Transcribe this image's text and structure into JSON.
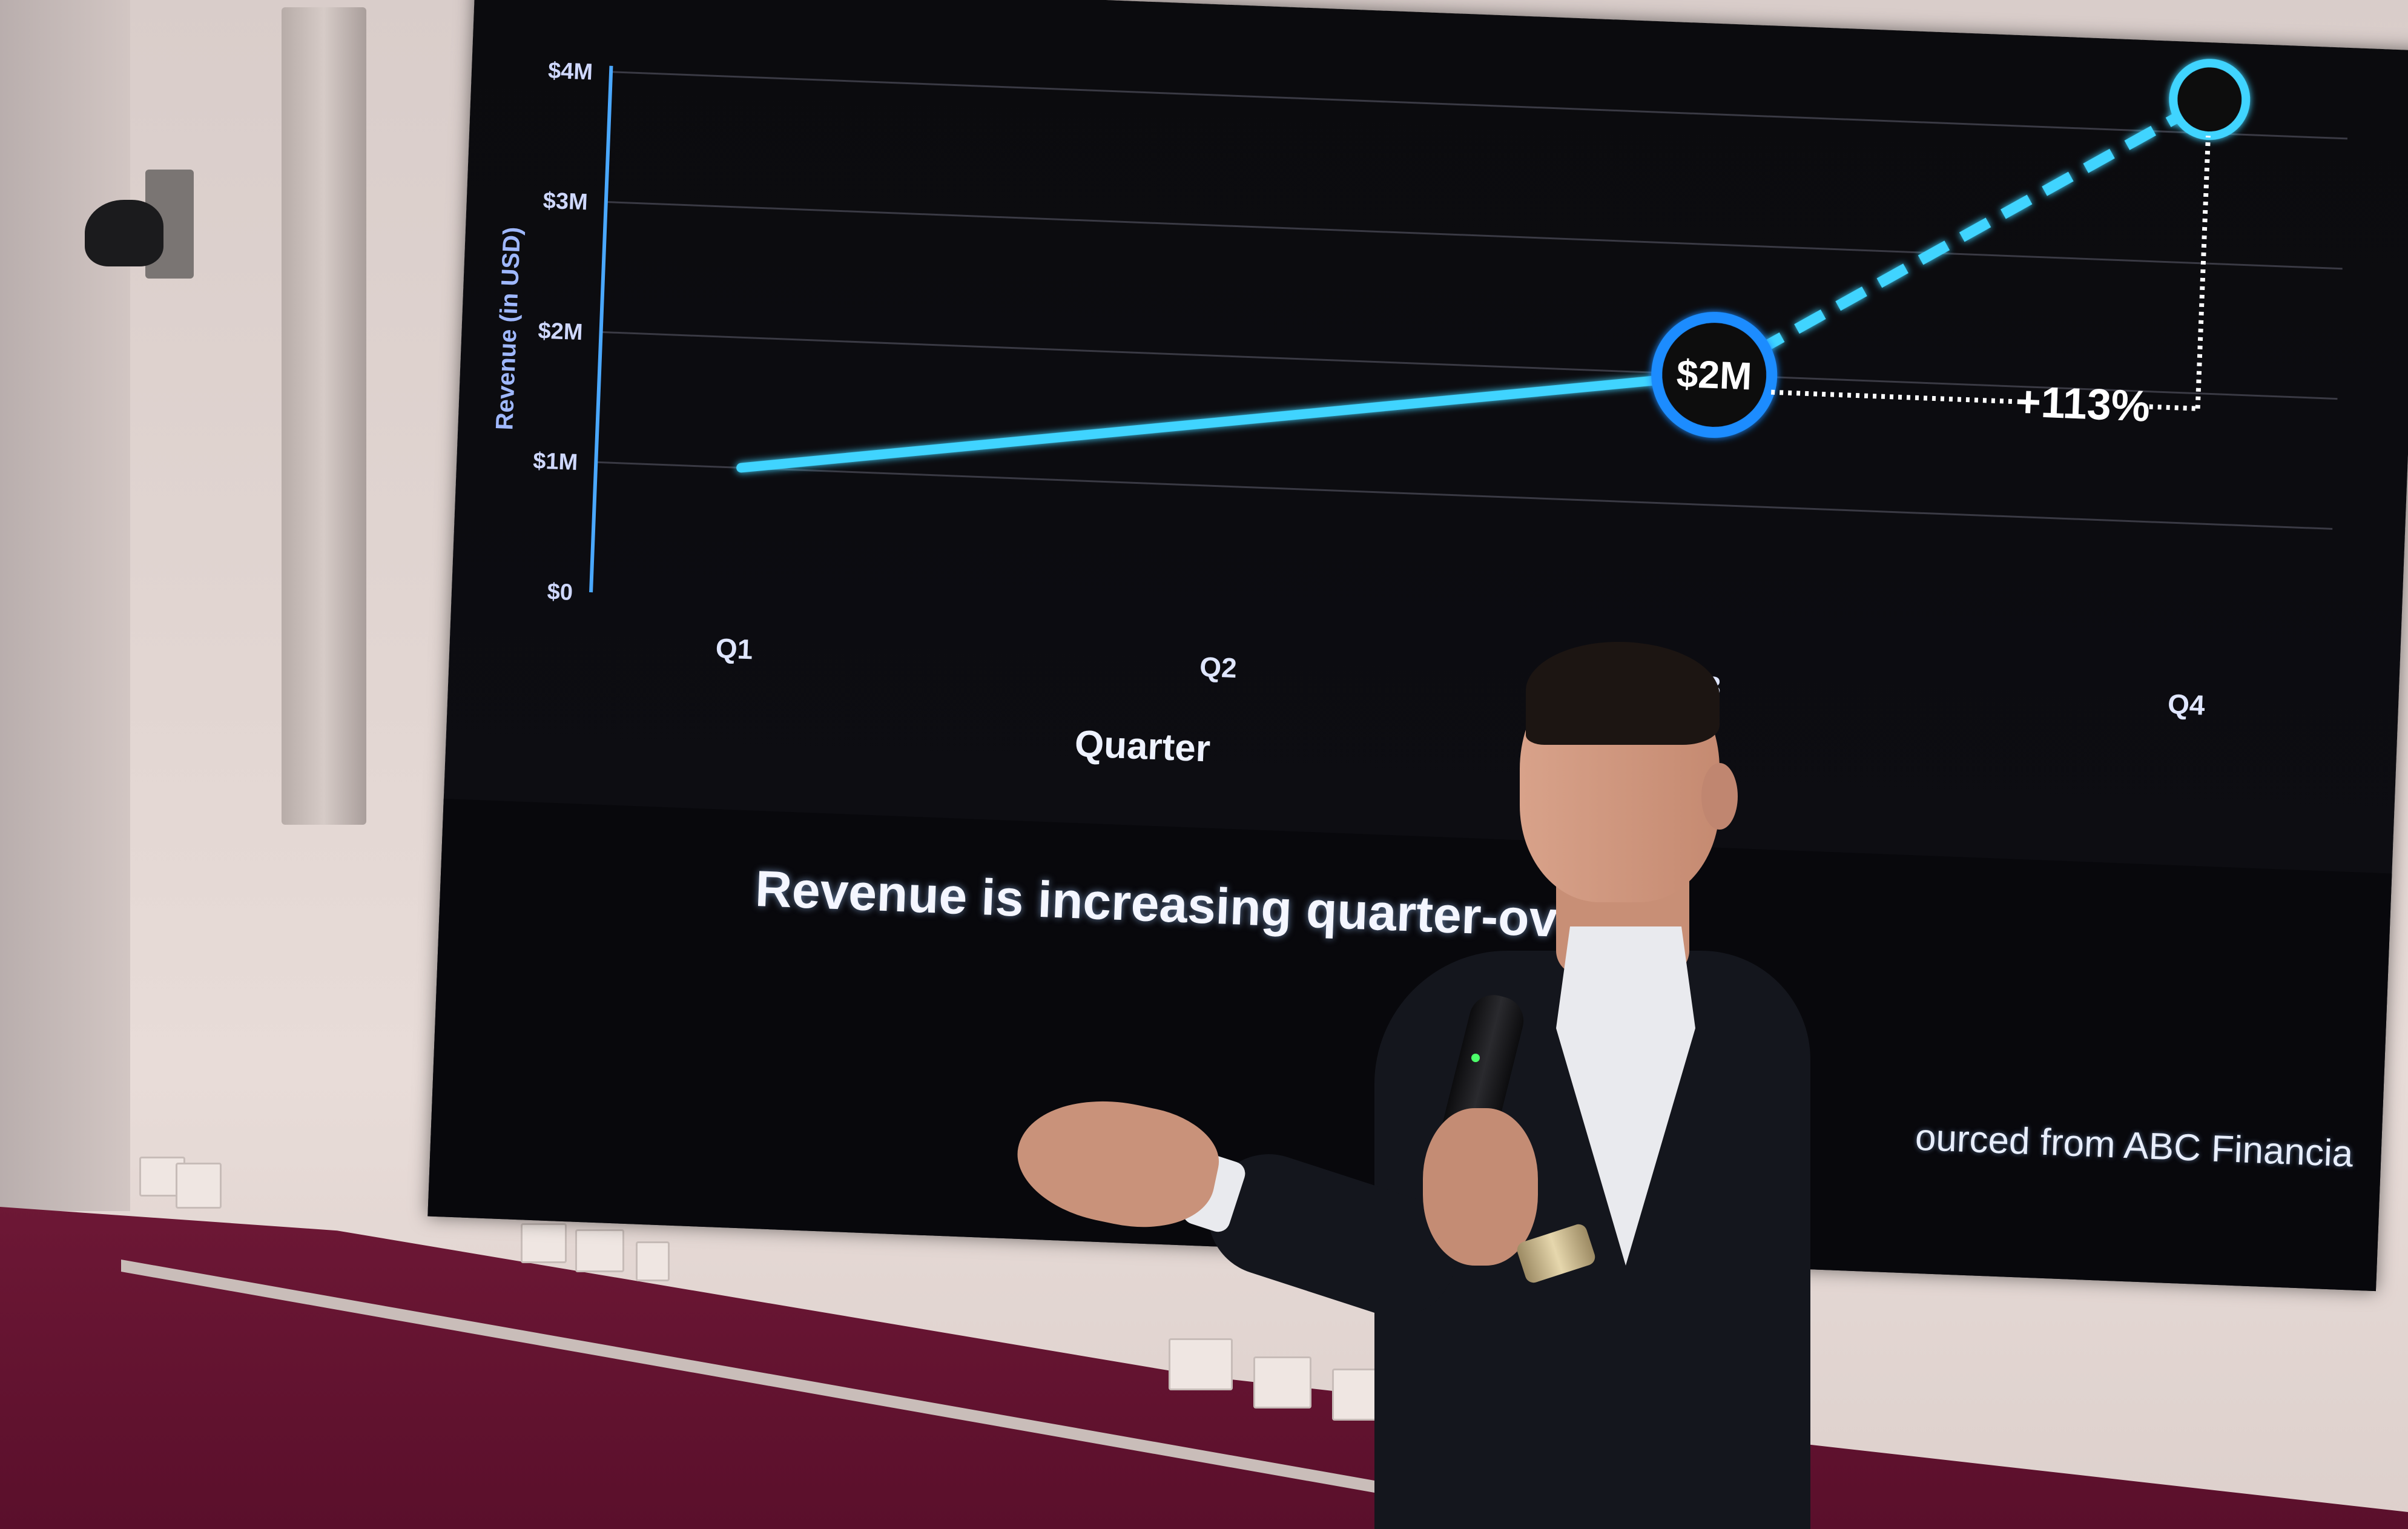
{
  "slide": {
    "caption": "Revenue is increasing quarter-over-q",
    "source_note": "ourced from ABC Financia"
  },
  "chart_data": {
    "type": "line",
    "title": "",
    "xlabel": "Quarter",
    "ylabel": "Revenue (in USD)",
    "categories": [
      "Q1",
      "Q2",
      "Q3",
      "Q4"
    ],
    "y_ticks": [
      "$0",
      "$1M",
      "$2M",
      "$3M",
      "$4M"
    ],
    "ylim": [
      0,
      4
    ],
    "series": [
      {
        "values": [
          1.0,
          1.5,
          2.0,
          4.26
        ]
      }
    ],
    "annotations": {
      "q3_label": "$2M",
      "growth_label": "+113%"
    },
    "line_style": "solid through Q3, dashed to Q4",
    "grid": true,
    "colors": {
      "line": "#3fd4ff",
      "accent": "#1a8cff",
      "axis": "#4aa8ff"
    }
  }
}
